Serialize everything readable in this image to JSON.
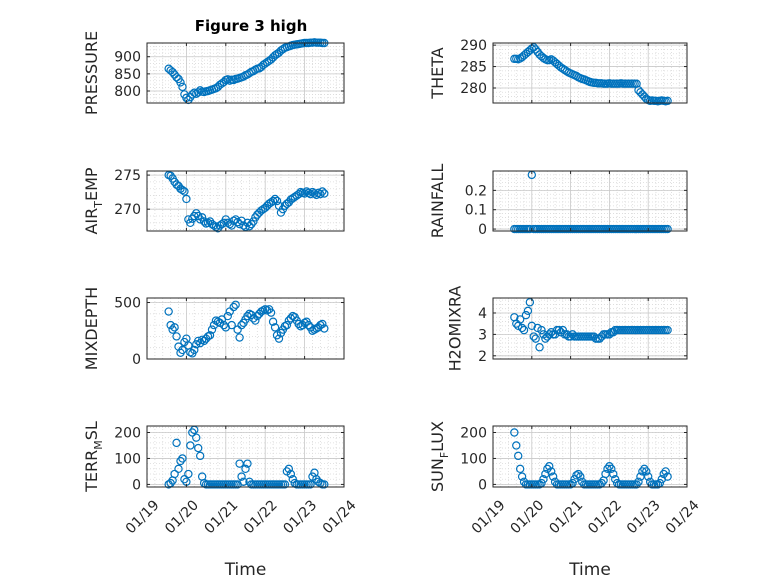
{
  "figure": {
    "title": "Figure 3 high",
    "xlabel": "Time",
    "x_ticks": [
      "01/19",
      "01/20",
      "01/21",
      "01/22",
      "01/23",
      "01/24"
    ],
    "marker_color": "#0072BD"
  },
  "chart_data": [
    {
      "type": "scatter",
      "ylabel_main": "PRESSURE",
      "ylabel_sub": "",
      "ylim": [
        765,
        940
      ],
      "yticks": [
        800,
        850,
        900
      ],
      "x": [
        19.55,
        19.6,
        19.65,
        19.7,
        19.75,
        19.8,
        19.85,
        19.9,
        19.95,
        20.0,
        20.05,
        20.1,
        20.15,
        20.2,
        20.25,
        20.3,
        20.35,
        20.4,
        20.45,
        20.5,
        20.55,
        20.6,
        20.65,
        20.7,
        20.75,
        20.8,
        20.85,
        20.9,
        20.95,
        21.0,
        21.05,
        21.1,
        21.15,
        21.2,
        21.25,
        21.3,
        21.35,
        21.4,
        21.45,
        21.5,
        21.55,
        21.6,
        21.65,
        21.7,
        21.75,
        21.8,
        21.85,
        21.9,
        21.95,
        22.0,
        22.05,
        22.1,
        22.15,
        22.2,
        22.25,
        22.3,
        22.35,
        22.4,
        22.45,
        22.5,
        22.55,
        22.6,
        22.65,
        22.7,
        22.75,
        22.8,
        22.85,
        22.9,
        22.95,
        23.0,
        23.05,
        23.1,
        23.15,
        23.2,
        23.25,
        23.3,
        23.35,
        23.4,
        23.45,
        23.5
      ],
      "y": [
        865,
        860,
        855,
        848,
        840,
        835,
        825,
        812,
        790,
        780,
        774,
        782,
        790,
        795,
        792,
        796,
        802,
        798,
        797,
        799,
        800,
        802,
        804,
        806,
        808,
        812,
        818,
        822,
        826,
        832,
        834,
        830,
        833,
        832,
        835,
        836,
        838,
        840,
        842,
        846,
        848,
        852,
        856,
        858,
        862,
        865,
        866,
        870,
        876,
        880,
        884,
        888,
        892,
        898,
        904,
        908,
        912,
        918,
        922,
        926,
        928,
        930,
        932,
        934,
        935,
        936,
        937,
        938,
        939,
        940,
        940,
        940,
        941,
        941,
        942,
        941,
        941,
        941,
        940,
        940
      ]
    },
    {
      "type": "scatter",
      "ylabel_main": "THETA",
      "ylabel_sub": "",
      "ylim": [
        276.5,
        290.5
      ],
      "yticks": [
        280,
        285,
        290
      ],
      "x": [
        19.55,
        19.6,
        19.65,
        19.7,
        19.75,
        19.8,
        19.85,
        19.9,
        19.95,
        20.0,
        20.05,
        20.1,
        20.15,
        20.2,
        20.25,
        20.3,
        20.35,
        20.4,
        20.45,
        20.5,
        20.55,
        20.6,
        20.65,
        20.7,
        20.75,
        20.8,
        20.85,
        20.9,
        20.95,
        21.0,
        21.05,
        21.1,
        21.15,
        21.2,
        21.25,
        21.3,
        21.35,
        21.4,
        21.45,
        21.5,
        21.55,
        21.6,
        21.65,
        21.7,
        21.75,
        21.8,
        21.85,
        21.9,
        21.95,
        22.0,
        22.05,
        22.1,
        22.15,
        22.2,
        22.25,
        22.3,
        22.35,
        22.4,
        22.45,
        22.5,
        22.55,
        22.6,
        22.65,
        22.7,
        22.75,
        22.8,
        22.85,
        22.9,
        22.95,
        23.0,
        23.05,
        23.1,
        23.15,
        23.2,
        23.25,
        23.3,
        23.35,
        23.4,
        23.45,
        23.5
      ],
      "y": [
        286.8,
        286.8,
        286.7,
        286.9,
        287.2,
        287.6,
        288.0,
        288.4,
        288.8,
        289.2,
        289.5,
        289.0,
        288.4,
        287.8,
        287.4,
        287.0,
        286.7,
        286.5,
        286.5,
        286.7,
        286.4,
        286.0,
        285.6,
        285.2,
        284.8,
        284.5,
        284.2,
        283.9,
        283.6,
        283.4,
        283.2,
        283.0,
        282.8,
        282.5,
        282.3,
        282.1,
        282.0,
        281.8,
        281.6,
        281.4,
        281.3,
        281.2,
        281.2,
        281.1,
        281.1,
        281.1,
        281.0,
        281.0,
        281.0,
        281.1,
        281.0,
        281.0,
        281.0,
        281.0,
        281.0,
        281.1,
        281.0,
        281.0,
        281.0,
        281.0,
        281.0,
        281.0,
        281.0,
        281.0,
        279.5,
        279.0,
        278.5,
        278.0,
        277.5,
        277.2,
        277.0,
        277.1,
        277.0,
        277.0,
        276.9,
        277.0,
        277.1,
        277.0,
        276.9,
        277.0
      ]
    },
    {
      "type": "scatter",
      "ylabel_main": "AIR",
      "ylabel_sub": "T",
      "ylabel_rest": "EMP",
      "ylim": [
        266.8,
        275.6
      ],
      "yticks": [
        270,
        275
      ],
      "x": [
        19.55,
        19.6,
        19.65,
        19.7,
        19.75,
        19.8,
        19.85,
        19.9,
        19.95,
        20.0,
        20.05,
        20.1,
        20.15,
        20.2,
        20.25,
        20.3,
        20.35,
        20.4,
        20.45,
        20.5,
        20.55,
        20.6,
        20.65,
        20.7,
        20.75,
        20.8,
        20.85,
        20.9,
        20.95,
        21.0,
        21.05,
        21.1,
        21.15,
        21.2,
        21.25,
        21.3,
        21.35,
        21.4,
        21.45,
        21.5,
        21.55,
        21.6,
        21.65,
        21.7,
        21.75,
        21.8,
        21.85,
        21.9,
        21.95,
        22.0,
        22.05,
        22.1,
        22.15,
        22.2,
        22.25,
        22.3,
        22.35,
        22.4,
        22.45,
        22.5,
        22.55,
        22.6,
        22.65,
        22.7,
        22.75,
        22.8,
        22.85,
        22.9,
        22.95,
        23.0,
        23.05,
        23.1,
        23.15,
        23.2,
        23.25,
        23.3,
        23.35,
        23.4,
        23.45,
        23.5
      ],
      "y": [
        275.0,
        274.9,
        274.5,
        274.0,
        273.6,
        273.4,
        273.0,
        272.8,
        272.6,
        271.5,
        268.5,
        268.0,
        268.6,
        269.0,
        269.4,
        269.0,
        268.5,
        268.8,
        268.2,
        267.9,
        268.0,
        268.2,
        267.8,
        267.6,
        267.4,
        267.2,
        267.6,
        267.8,
        268.0,
        268.5,
        268.0,
        267.8,
        267.6,
        268.3,
        268.5,
        268.1,
        267.8,
        268.3,
        267.6,
        267.4,
        268.0,
        267.5,
        267.8,
        268.2,
        268.8,
        269.2,
        269.5,
        269.8,
        270.0,
        270.2,
        270.5,
        270.8,
        271.0,
        271.2,
        271.5,
        271.2,
        270.5,
        269.5,
        270.0,
        270.5,
        270.8,
        271.0,
        271.4,
        271.6,
        271.8,
        272.0,
        272.2,
        272.5,
        272.4,
        272.3,
        272.6,
        272.4,
        272.2,
        272.5,
        272.3,
        272.1,
        272.4,
        272.2,
        272.6,
        272.3
      ]
    },
    {
      "type": "scatter",
      "ylabel_main": "RAINFALL",
      "ylabel_sub": "",
      "ylim": [
        -0.01,
        0.3
      ],
      "yticks": [
        0,
        0.1,
        0.2
      ],
      "ytick_labels": [
        "0",
        "0.1",
        "0.2"
      ],
      "x": [
        19.55,
        19.6,
        19.65,
        19.7,
        19.75,
        19.8,
        19.85,
        19.9,
        19.95,
        20.0,
        20.05,
        20.1,
        20.15,
        20.2,
        20.25,
        20.3,
        20.35,
        20.4,
        20.45,
        20.5,
        20.55,
        20.6,
        20.65,
        20.7,
        20.75,
        20.8,
        20.85,
        20.9,
        20.95,
        21.0,
        21.05,
        21.1,
        21.15,
        21.2,
        21.25,
        21.3,
        21.35,
        21.4,
        21.45,
        21.5,
        21.55,
        21.6,
        21.65,
        21.7,
        21.75,
        21.8,
        21.85,
        21.9,
        21.95,
        22.0,
        22.05,
        22.1,
        22.15,
        22.2,
        22.25,
        22.3,
        22.35,
        22.4,
        22.45,
        22.5,
        22.55,
        22.6,
        22.65,
        22.7,
        22.75,
        22.8,
        22.85,
        22.9,
        22.95,
        23.0,
        23.05,
        23.1,
        23.15,
        23.2,
        23.25,
        23.3,
        23.35,
        23.4,
        23.45,
        23.5
      ],
      "y": [
        0,
        0,
        0,
        0,
        0,
        0,
        0,
        0,
        0,
        0.28,
        0,
        0,
        0,
        0,
        0,
        0,
        0,
        0,
        0,
        0,
        0,
        0,
        0,
        0,
        0,
        0,
        0,
        0,
        0,
        0,
        0,
        0,
        0,
        0,
        0,
        0,
        0,
        0,
        0,
        0,
        0,
        0,
        0,
        0,
        0,
        0,
        0,
        0,
        0,
        0,
        0,
        0,
        0,
        0,
        0,
        0,
        0,
        0,
        0,
        0,
        0,
        0,
        0,
        0,
        0,
        0,
        0,
        0,
        0,
        0,
        0,
        0,
        0,
        0,
        0,
        0,
        0,
        0,
        0,
        0
      ]
    },
    {
      "type": "scatter",
      "ylabel_main": "MIXDEPTH",
      "ylabel_sub": "",
      "ylim": [
        0,
        540
      ],
      "yticks": [
        0,
        500
      ],
      "x": [
        19.55,
        19.6,
        19.65,
        19.7,
        19.75,
        19.8,
        19.85,
        19.9,
        19.95,
        20.0,
        20.05,
        20.1,
        20.15,
        20.2,
        20.25,
        20.3,
        20.35,
        20.4,
        20.45,
        20.5,
        20.55,
        20.6,
        20.65,
        20.7,
        20.75,
        20.8,
        20.85,
        20.9,
        20.95,
        21.0,
        21.05,
        21.1,
        21.15,
        21.2,
        21.25,
        21.3,
        21.35,
        21.4,
        21.45,
        21.5,
        21.55,
        21.6,
        21.65,
        21.7,
        21.75,
        21.8,
        21.85,
        21.9,
        21.95,
        22.0,
        22.05,
        22.1,
        22.15,
        22.2,
        22.25,
        22.3,
        22.35,
        22.4,
        22.45,
        22.5,
        22.55,
        22.6,
        22.65,
        22.7,
        22.75,
        22.8,
        22.85,
        22.9,
        22.95,
        23.0,
        23.05,
        23.1,
        23.15,
        23.2,
        23.25,
        23.3,
        23.35,
        23.4,
        23.45,
        23.5
      ],
      "y": [
        420,
        300,
        260,
        280,
        200,
        110,
        55,
        80,
        150,
        180,
        120,
        60,
        50,
        80,
        130,
        160,
        140,
        170,
        160,
        180,
        200,
        210,
        260,
        300,
        340,
        330,
        320,
        350,
        300,
        280,
        380,
        420,
        300,
        460,
        480,
        260,
        190,
        300,
        320,
        350,
        380,
        400,
        390,
        360,
        340,
        380,
        400,
        420,
        430,
        440,
        430,
        440,
        410,
        330,
        280,
        210,
        180,
        230,
        260,
        290,
        300,
        340,
        360,
        380,
        370,
        340,
        310,
        290,
        300,
        320,
        330,
        300,
        280,
        250,
        260,
        270,
        280,
        300,
        310,
        270
      ]
    },
    {
      "type": "scatter",
      "ylabel_main": "H2OMIXRA",
      "ylabel_sub": "",
      "ylim": [
        1.85,
        4.7
      ],
      "yticks": [
        2,
        3,
        4
      ],
      "x": [
        19.55,
        19.6,
        19.65,
        19.7,
        19.75,
        19.8,
        19.85,
        19.9,
        19.95,
        20.0,
        20.05,
        20.1,
        20.15,
        20.2,
        20.25,
        20.3,
        20.35,
        20.4,
        20.45,
        20.5,
        20.55,
        20.6,
        20.65,
        20.7,
        20.75,
        20.8,
        20.85,
        20.9,
        20.95,
        21.0,
        21.05,
        21.1,
        21.15,
        21.2,
        21.25,
        21.3,
        21.35,
        21.4,
        21.45,
        21.5,
        21.55,
        21.6,
        21.65,
        21.7,
        21.75,
        21.8,
        21.85,
        21.9,
        21.95,
        22.0,
        22.05,
        22.1,
        22.15,
        22.2,
        22.25,
        22.3,
        22.35,
        22.4,
        22.45,
        22.5,
        22.55,
        22.6,
        22.65,
        22.7,
        22.75,
        22.8,
        22.85,
        22.9,
        22.95,
        23.0,
        23.05,
        23.1,
        23.15,
        23.2,
        23.25,
        23.3,
        23.35,
        23.4,
        23.45,
        23.5
      ],
      "y": [
        3.8,
        3.5,
        3.4,
        3.7,
        3.3,
        3.2,
        3.9,
        4.1,
        4.5,
        3.4,
        2.9,
        2.8,
        3.3,
        2.4,
        3.2,
        3.0,
        2.8,
        2.9,
        3.0,
        3.1,
        3.0,
        3.0,
        3.2,
        3.2,
        3.1,
        3.2,
        3.0,
        3.0,
        2.9,
        2.9,
        3.0,
        2.9,
        2.9,
        2.9,
        2.9,
        2.9,
        2.9,
        2.9,
        2.9,
        2.9,
        2.9,
        2.9,
        2.8,
        2.8,
        2.8,
        2.9,
        3.0,
        3.0,
        3.0,
        3.0,
        3.1,
        3.1,
        3.2,
        3.2,
        3.2,
        3.2,
        3.2,
        3.2,
        3.2,
        3.2,
        3.2,
        3.2,
        3.2,
        3.2,
        3.2,
        3.2,
        3.2,
        3.2,
        3.2,
        3.2,
        3.2,
        3.2,
        3.2,
        3.2,
        3.2,
        3.2,
        3.2,
        3.2,
        3.2,
        3.2
      ]
    },
    {
      "type": "scatter",
      "ylabel_main": "TERR",
      "ylabel_sub": "M",
      "ylabel_rest": "SL",
      "ylim": [
        -10,
        225
      ],
      "yticks": [
        0,
        100,
        200
      ],
      "x": [
        19.55,
        19.6,
        19.65,
        19.7,
        19.75,
        19.8,
        19.85,
        19.9,
        19.95,
        20.0,
        20.05,
        20.1,
        20.15,
        20.2,
        20.25,
        20.3,
        20.35,
        20.4,
        20.45,
        20.5,
        20.55,
        20.6,
        20.65,
        20.7,
        20.75,
        20.8,
        20.85,
        20.9,
        20.95,
        21.0,
        21.05,
        21.1,
        21.15,
        21.2,
        21.25,
        21.3,
        21.35,
        21.4,
        21.45,
        21.5,
        21.55,
        21.6,
        21.65,
        21.7,
        21.75,
        21.8,
        21.85,
        21.9,
        21.95,
        22.0,
        22.05,
        22.1,
        22.15,
        22.2,
        22.25,
        22.3,
        22.35,
        22.4,
        22.45,
        22.5,
        22.55,
        22.6,
        22.65,
        22.7,
        22.75,
        22.8,
        22.85,
        22.9,
        22.95,
        23.0,
        23.05,
        23.1,
        23.15,
        23.2,
        23.25,
        23.3,
        23.35,
        23.4,
        23.45,
        23.5
      ],
      "y": [
        0,
        5,
        15,
        40,
        160,
        60,
        90,
        100,
        20,
        10,
        40,
        150,
        200,
        210,
        180,
        140,
        110,
        30,
        5,
        0,
        0,
        0,
        0,
        0,
        0,
        0,
        0,
        0,
        0,
        0,
        0,
        0,
        0,
        0,
        0,
        0,
        80,
        30,
        10,
        60,
        80,
        10,
        0,
        0,
        0,
        0,
        0,
        0,
        0,
        0,
        0,
        0,
        0,
        0,
        0,
        0,
        0,
        0,
        0,
        0,
        50,
        60,
        40,
        20,
        5,
        0,
        0,
        0,
        0,
        0,
        0,
        0,
        0,
        30,
        45,
        20,
        10,
        5,
        0,
        0
      ]
    },
    {
      "type": "scatter",
      "ylabel_main": "SUN",
      "ylabel_sub": "F",
      "ylabel_rest": "LUX",
      "ylim": [
        -10,
        225
      ],
      "yticks": [
        0,
        100,
        200
      ],
      "x": [
        19.55,
        19.6,
        19.65,
        19.7,
        19.75,
        19.8,
        19.85,
        19.9,
        19.95,
        20.0,
        20.05,
        20.1,
        20.15,
        20.2,
        20.25,
        20.3,
        20.35,
        20.4,
        20.45,
        20.5,
        20.55,
        20.6,
        20.65,
        20.7,
        20.75,
        20.8,
        20.85,
        20.9,
        20.95,
        21.0,
        21.05,
        21.1,
        21.15,
        21.2,
        21.25,
        21.3,
        21.35,
        21.4,
        21.45,
        21.5,
        21.55,
        21.6,
        21.65,
        21.7,
        21.75,
        21.8,
        21.85,
        21.9,
        21.95,
        22.0,
        22.05,
        22.1,
        22.15,
        22.2,
        22.25,
        22.3,
        22.35,
        22.4,
        22.45,
        22.5,
        22.55,
        22.6,
        22.65,
        22.7,
        22.75,
        22.8,
        22.85,
        22.9,
        22.95,
        23.0,
        23.05,
        23.1,
        23.15,
        23.2,
        23.25,
        23.3,
        23.35,
        23.4,
        23.45,
        23.5
      ],
      "y": [
        200,
        150,
        110,
        60,
        30,
        10,
        0,
        0,
        0,
        0,
        0,
        0,
        0,
        0,
        5,
        20,
        40,
        60,
        70,
        50,
        30,
        10,
        0,
        0,
        0,
        0,
        0,
        0,
        0,
        0,
        5,
        20,
        35,
        40,
        30,
        10,
        0,
        0,
        0,
        0,
        0,
        0,
        0,
        0,
        0,
        5,
        15,
        40,
        60,
        70,
        60,
        40,
        20,
        5,
        0,
        0,
        0,
        0,
        0,
        0,
        0,
        0,
        0,
        0,
        10,
        30,
        50,
        60,
        50,
        30,
        10,
        0,
        0,
        0,
        0,
        5,
        20,
        40,
        50,
        30
      ]
    }
  ]
}
